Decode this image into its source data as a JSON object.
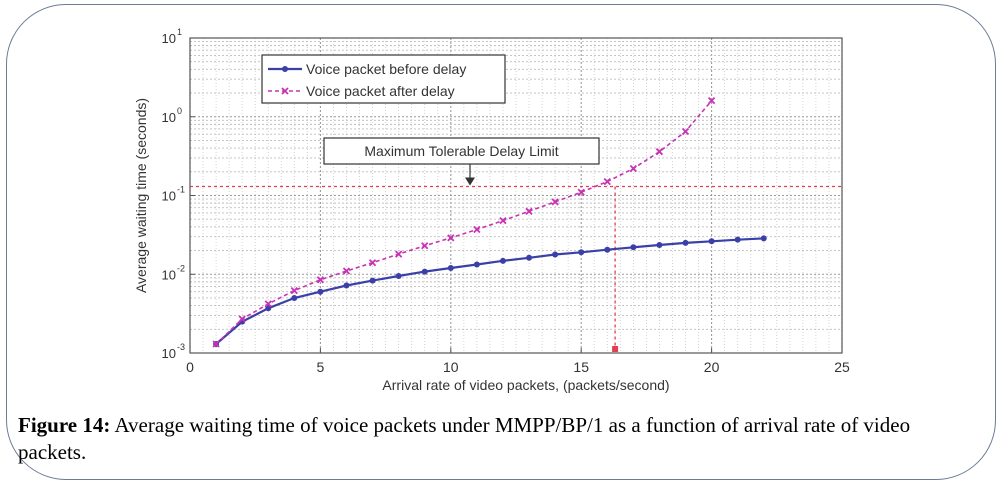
{
  "caption": {
    "label": "Figure 14:",
    "text": " Average waiting time of voice packets under MMPP/BP/1 as a function of arrival rate of video packets."
  },
  "chart_data": {
    "type": "line",
    "title": "",
    "xlabel": "Arrival rate of video packets, (packets/second)",
    "ylabel": "Average waiting time (seconds)",
    "xlim": [
      0,
      25
    ],
    "ylim": [
      0.001,
      10
    ],
    "yscale": "log",
    "grid": true,
    "legend_position": "top-left",
    "x_ticks": [
      0,
      5,
      10,
      15,
      20,
      25
    ],
    "y_ticks": [
      {
        "base": "10",
        "exp": "-3",
        "value": 0.001
      },
      {
        "base": "10",
        "exp": "-2",
        "value": 0.01
      },
      {
        "base": "10",
        "exp": "-1",
        "value": 0.1
      },
      {
        "base": "10",
        "exp": "0",
        "value": 1
      },
      {
        "base": "10",
        "exp": "1",
        "value": 10
      }
    ],
    "series": [
      {
        "name": "Voice packet before delay",
        "color": "#3b3fa8",
        "style": "solid",
        "x": [
          1,
          2,
          3,
          4,
          5,
          6,
          7,
          8,
          9,
          10,
          11,
          12,
          13,
          14,
          15,
          16,
          17,
          18,
          19,
          20,
          21,
          22
        ],
        "y": [
          0.0013,
          0.0025,
          0.0037,
          0.005,
          0.006,
          0.0072,
          0.0083,
          0.0095,
          0.0108,
          0.012,
          0.0133,
          0.0148,
          0.0162,
          0.0178,
          0.019,
          0.0205,
          0.022,
          0.0235,
          0.025,
          0.0262,
          0.0275,
          0.0285
        ]
      },
      {
        "name": "Voice packet after delay",
        "color": "#c833b4",
        "style": "dashed",
        "x": [
          1,
          2,
          3,
          4,
          5,
          6,
          7,
          8,
          9,
          10,
          11,
          12,
          13,
          14,
          15,
          16,
          17,
          18,
          19,
          20
        ],
        "y": [
          0.0013,
          0.0027,
          0.0042,
          0.0062,
          0.0085,
          0.011,
          0.014,
          0.018,
          0.023,
          0.029,
          0.037,
          0.048,
          0.063,
          0.083,
          0.11,
          0.15,
          0.22,
          0.36,
          0.65,
          1.6
        ]
      }
    ],
    "annotations": [
      {
        "text": "Maximum Tolerable Delay Limit",
        "y": 0.13,
        "x": 16.3,
        "color": "#e04050"
      }
    ]
  }
}
